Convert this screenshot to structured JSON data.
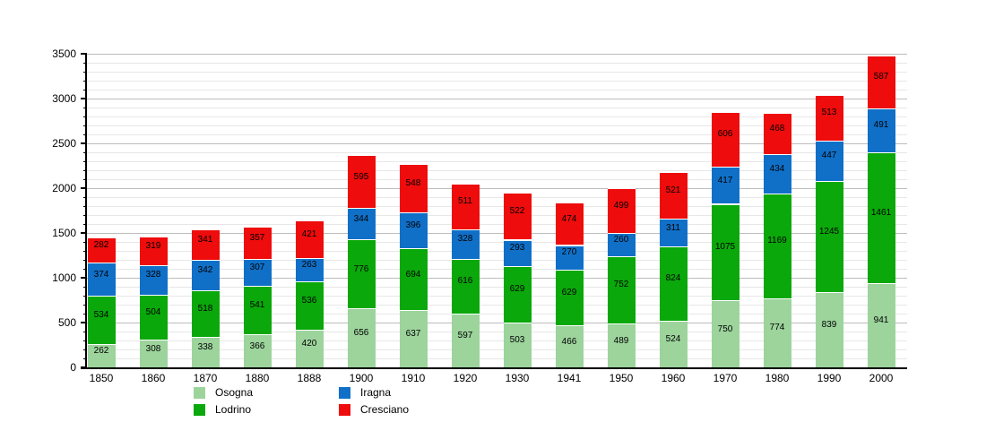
{
  "chart_data": {
    "type": "bar",
    "stacked": true,
    "title": "",
    "xlabel": "",
    "ylabel": "",
    "categories": [
      "1850",
      "1860",
      "1870",
      "1880",
      "1888",
      "1900",
      "1910",
      "1920",
      "1930",
      "1941",
      "1950",
      "1960",
      "1970",
      "1980",
      "1990",
      "2000"
    ],
    "series": [
      {
        "name": "Osogna",
        "color": "#9cd49c",
        "values": [
          262,
          308,
          338,
          366,
          420,
          656,
          637,
          597,
          503,
          466,
          489,
          524,
          750,
          774,
          839,
          941
        ]
      },
      {
        "name": "Lodrino",
        "color": "#0aa80a",
        "values": [
          534,
          504,
          518,
          541,
          536,
          776,
          694,
          616,
          629,
          629,
          752,
          824,
          1075,
          1169,
          1245,
          1461
        ]
      },
      {
        "name": "Iragna",
        "color": "#1070c8",
        "values": [
          374,
          328,
          342,
          307,
          263,
          344,
          396,
          328,
          293,
          270,
          260,
          311,
          417,
          434,
          447,
          491
        ]
      },
      {
        "name": "Cresciano",
        "color": "#ee0c0c",
        "values": [
          282,
          319,
          341,
          357,
          421,
          595,
          548,
          511,
          522,
          474,
          499,
          521,
          606,
          468,
          513,
          587
        ]
      }
    ],
    "ylim": [
      0,
      3500
    ],
    "y_major_tick_step": 500,
    "y_minor_tick_step": 100,
    "y_tick_labels": [
      "0",
      "500",
      "1000",
      "1500",
      "2000",
      "2500",
      "3000",
      "3500"
    ],
    "grid": "horizontal minor every 100, major every 500",
    "bar_value_labels": true,
    "legend_position": "bottom"
  },
  "colors": {
    "background": "#ffffff",
    "axis": "#000000",
    "grid_minor": "#e7e7e7",
    "grid_major": "#bdbdbd",
    "label_text": "#000000"
  }
}
